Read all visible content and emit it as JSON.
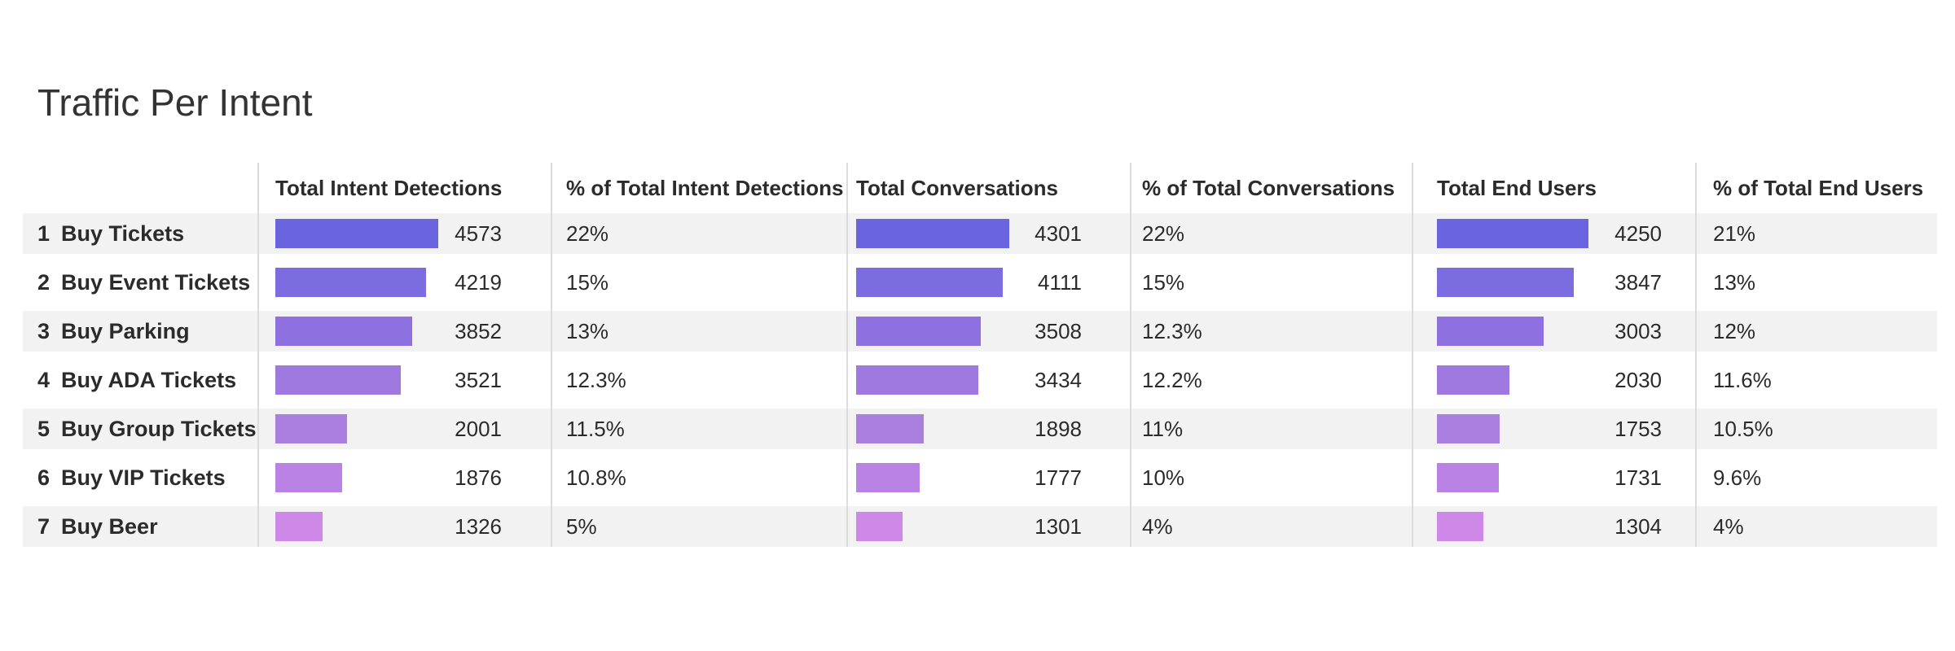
{
  "title": "Traffic Per Intent",
  "columns": [
    "Total Intent Detections",
    "% of Total Intent Detections",
    "Total Conversations",
    "% of Total Conversations",
    "Total End Users",
    "% of Total End Users"
  ],
  "colors": {
    "row_shade": "#f2f2f2",
    "grid_line": "#dcdcdc",
    "bar_gradient": [
      "#6a64e0",
      "#7b6ddf",
      "#8f70e0",
      "#9f78e0",
      "#ab7fe0",
      "#bb82e6",
      "#cd88e8"
    ]
  },
  "chart_data": {
    "type": "table",
    "title": "Traffic Per Intent",
    "rows": [
      {
        "rank": "1",
        "intent": "Buy Tickets",
        "intent_detections": 4573,
        "intent_detections_pct": "22%",
        "conversations": 4301,
        "conversations_pct": "22%",
        "end_users": 4250,
        "end_users_pct": "21%"
      },
      {
        "rank": "2",
        "intent": "Buy Event Tickets",
        "intent_detections": 4219,
        "intent_detections_pct": "15%",
        "conversations": 4111,
        "conversations_pct": "15%",
        "end_users": 3847,
        "end_users_pct": "13%"
      },
      {
        "rank": "3",
        "intent": "Buy Parking",
        "intent_detections": 3852,
        "intent_detections_pct": "13%",
        "conversations": 3508,
        "conversations_pct": "12.3%",
        "end_users": 3003,
        "end_users_pct": "12%"
      },
      {
        "rank": "4",
        "intent": "Buy ADA Tickets",
        "intent_detections": 3521,
        "intent_detections_pct": "12.3%",
        "conversations": 3434,
        "conversations_pct": "12.2%",
        "end_users": 2030,
        "end_users_pct": "11.6%"
      },
      {
        "rank": "5",
        "intent": "Buy Group Tickets",
        "intent_detections": 2001,
        "intent_detections_pct": "11.5%",
        "conversations": 1898,
        "conversations_pct": "11%",
        "end_users": 1753,
        "end_users_pct": "10.5%"
      },
      {
        "rank": "6",
        "intent": "Buy VIP Tickets",
        "intent_detections": 1876,
        "intent_detections_pct": "10.8%",
        "conversations": 1777,
        "conversations_pct": "10%",
        "end_users": 1731,
        "end_users_pct": "9.6%"
      },
      {
        "rank": "7",
        "intent": "Buy Beer",
        "intent_detections": 1326,
        "intent_detections_pct": "5%",
        "conversations": 1301,
        "conversations_pct": "4%",
        "end_users": 1304,
        "end_users_pct": "4%"
      }
    ]
  }
}
